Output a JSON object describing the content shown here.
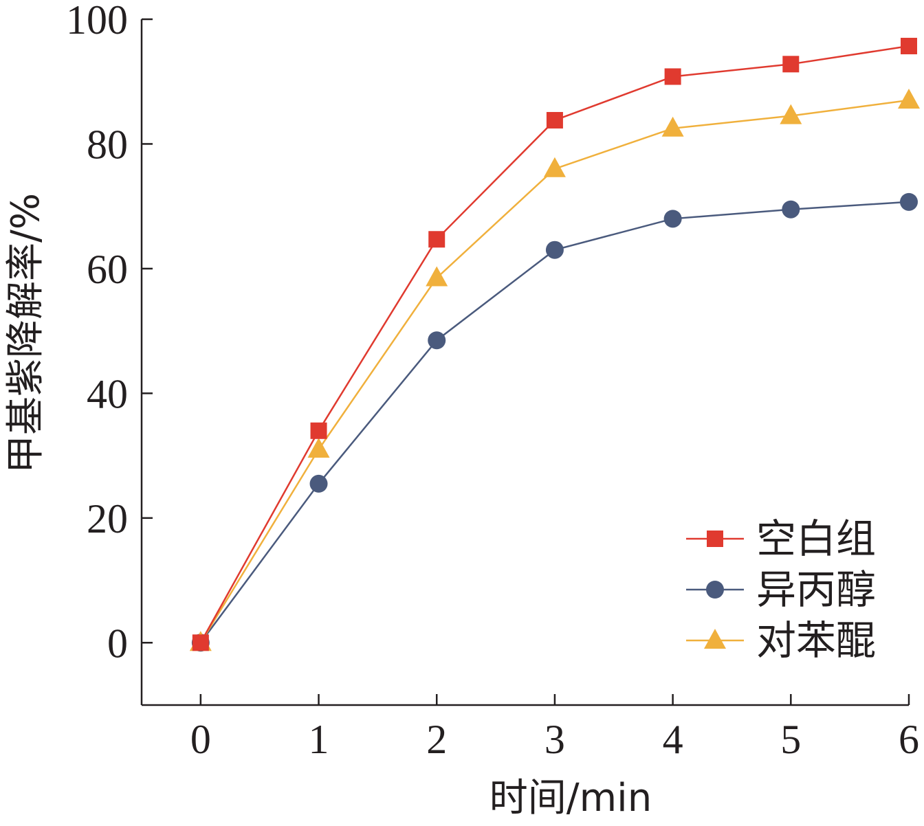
{
  "chart_data": {
    "type": "line",
    "title": "",
    "xlabel": "时间/min",
    "ylabel": "甲基紫降解率/%",
    "x": [
      0,
      1,
      2,
      3,
      4,
      5,
      6
    ],
    "xlim": [
      -0.5,
      6
    ],
    "ylim": [
      -10,
      100
    ],
    "xticks": [
      0,
      1,
      2,
      3,
      4,
      5,
      6
    ],
    "yticks": [
      0,
      20,
      40,
      60,
      80,
      100
    ],
    "grid": false,
    "legend_position": "bottom-right",
    "series": [
      {
        "name": "空白组",
        "marker": "square",
        "color": "#e03a2f",
        "values": [
          0,
          34,
          64.7,
          83.8,
          90.8,
          92.8,
          95.7
        ]
      },
      {
        "name": "异丙醇",
        "marker": "circle",
        "color": "#4a5a7d",
        "values": [
          0,
          25.5,
          48.5,
          63,
          68,
          69.5,
          70.7
        ]
      },
      {
        "name": "对苯醌",
        "marker": "triangle",
        "color": "#f0b03c",
        "values": [
          0,
          31,
          58.5,
          76,
          82.5,
          84.5,
          87
        ]
      }
    ]
  }
}
